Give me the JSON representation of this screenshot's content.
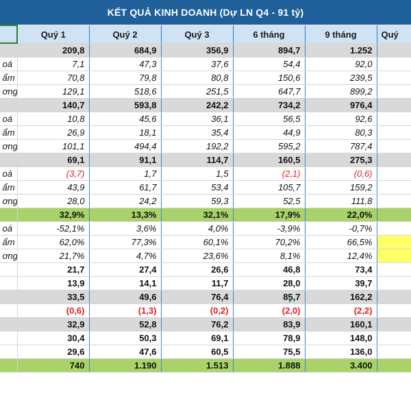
{
  "title": "KẾT QUẢ KINH DOANH (Dự LN Q4 - 91 tỷ)",
  "headers": [
    "Quý 1",
    "Quý 2",
    "Quý 3",
    "6 tháng",
    "9 tháng",
    "Quý"
  ],
  "rows": [
    {
      "label": "",
      "style": "gray",
      "values": [
        "209,8",
        "684,9",
        "356,9",
        "894,7",
        "1.252",
        ""
      ]
    },
    {
      "label": "oá",
      "style": "italic",
      "values": [
        "7,1",
        "47,3",
        "37,6",
        "54,4",
        "92,0",
        ""
      ]
    },
    {
      "label": "ẩm",
      "style": "italic",
      "values": [
        "70,8",
        "79,8",
        "80,8",
        "150,6",
        "239,5",
        ""
      ]
    },
    {
      "label": "ơng",
      "style": "italic",
      "values": [
        "129,1",
        "518,6",
        "251,5",
        "647,7",
        "899,2",
        ""
      ]
    },
    {
      "label": "",
      "style": "gray",
      "values": [
        "140,7",
        "593,8",
        "242,2",
        "734,2",
        "976,4",
        ""
      ]
    },
    {
      "label": "oá",
      "style": "italic",
      "values": [
        "10,8",
        "45,6",
        "36,1",
        "56,5",
        "92,6",
        ""
      ]
    },
    {
      "label": "ẩm",
      "style": "italic",
      "values": [
        "26,9",
        "18,1",
        "35,4",
        "44,9",
        "80,3",
        ""
      ]
    },
    {
      "label": "ơng",
      "style": "italic",
      "values": [
        "101,1",
        "494,4",
        "192,2",
        "595,2",
        "787,4",
        ""
      ]
    },
    {
      "label": "",
      "style": "gray",
      "values": [
        "69,1",
        "91,1",
        "114,7",
        "160,5",
        "275,3",
        ""
      ]
    },
    {
      "label": "oá",
      "style": "italic",
      "values": [
        "(3,7)",
        "1,7",
        "1,5",
        "(2,1)",
        "(0,6)",
        ""
      ]
    },
    {
      "label": "ẩm",
      "style": "italic",
      "values": [
        "43,9",
        "61,7",
        "53,4",
        "105,7",
        "159,2",
        ""
      ]
    },
    {
      "label": "ơng",
      "style": "italic",
      "values": [
        "28,0",
        "24,2",
        "59,3",
        "52,5",
        "111,8",
        ""
      ]
    },
    {
      "label": "",
      "style": "green",
      "values": [
        "32,9%",
        "13,3%",
        "32,1%",
        "17,9%",
        "22,0%",
        ""
      ]
    },
    {
      "label": "oá",
      "style": "italic",
      "values": [
        "-52,1%",
        "3,6%",
        "4,0%",
        "-3,9%",
        "-0,7%",
        ""
      ]
    },
    {
      "label": "ẩm",
      "style": "italic",
      "values": [
        "62,0%",
        "77,3%",
        "60,1%",
        "70,2%",
        "66,5%",
        ""
      ]
    },
    {
      "label": "ơng",
      "style": "italic",
      "values": [
        "21,7%",
        "4,7%",
        "23,6%",
        "8,1%",
        "12,4%",
        ""
      ]
    },
    {
      "label": "",
      "style": "bold",
      "values": [
        "21,7",
        "27,4",
        "26,6",
        "46,8",
        "73,4",
        ""
      ]
    },
    {
      "label": "",
      "style": "bold",
      "values": [
        "13,9",
        "14,1",
        "11,7",
        "28,0",
        "39,7",
        ""
      ]
    },
    {
      "label": "",
      "style": "gray",
      "values": [
        "33,5",
        "49,6",
        "76,4",
        "85,7",
        "162,2",
        ""
      ]
    },
    {
      "label": "",
      "style": "bold",
      "values": [
        "(0,6)",
        "(1,3)",
        "(0,2)",
        "(2,0)",
        "(2,2)",
        ""
      ]
    },
    {
      "label": "",
      "style": "gray",
      "values": [
        "32,9",
        "52,8",
        "76,2",
        "83,9",
        "160,1",
        ""
      ]
    },
    {
      "label": "",
      "style": "bold",
      "values": [
        "30,4",
        "50,3",
        "69,1",
        "78,9",
        "148,0",
        ""
      ]
    },
    {
      "label": "",
      "style": "bold",
      "values": [
        "29,6",
        "47,6",
        "60,5",
        "75,5",
        "136,0",
        ""
      ]
    },
    {
      "label": "",
      "style": "green",
      "values": [
        "740",
        "1.190",
        "1.513",
        "1.888",
        "3.400",
        ""
      ]
    }
  ],
  "colors": {
    "title_bg": "#1f5f9a",
    "header_bg": "#cfe3f5",
    "gray_row": "#d9d9d9",
    "green_row": "#a9d36a",
    "negative": "#e02020",
    "highlight": "#ffff66"
  }
}
